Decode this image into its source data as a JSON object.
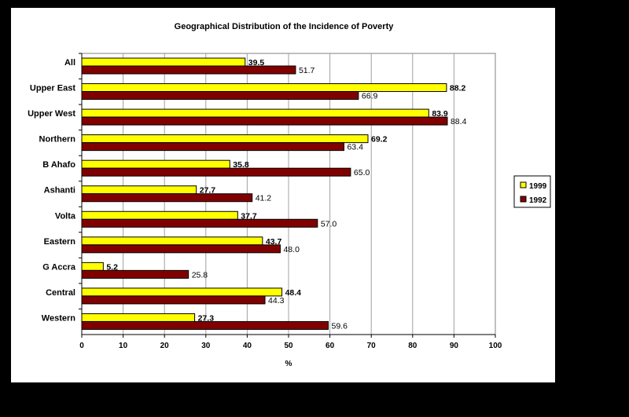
{
  "chart_data": {
    "type": "bar",
    "orientation": "horizontal",
    "title": "Geographical Distribution of the Incidence of Poverty",
    "xlabel": "%",
    "ylabel": "",
    "xlim": [
      0,
      100
    ],
    "xticks": [
      0,
      10,
      20,
      30,
      40,
      50,
      60,
      70,
      80,
      90,
      100
    ],
    "grid": "vertical",
    "legend": "right",
    "categories": [
      "All",
      "Upper East",
      "Upper West",
      "Northern",
      "B Ahafo",
      "Ashanti",
      "Volta",
      "Eastern",
      "G Accra",
      "Central",
      "Western"
    ],
    "series": [
      {
        "name": "1999",
        "color": "#ffff00",
        "values": [
          39.5,
          88.2,
          83.9,
          69.2,
          35.8,
          27.7,
          37.7,
          43.7,
          5.2,
          48.4,
          27.3
        ]
      },
      {
        "name": "1992",
        "color": "#800000",
        "values": [
          51.7,
          66.9,
          88.4,
          63.4,
          65.0,
          41.2,
          57.0,
          48.0,
          25.8,
          44.3,
          59.6
        ]
      }
    ]
  }
}
